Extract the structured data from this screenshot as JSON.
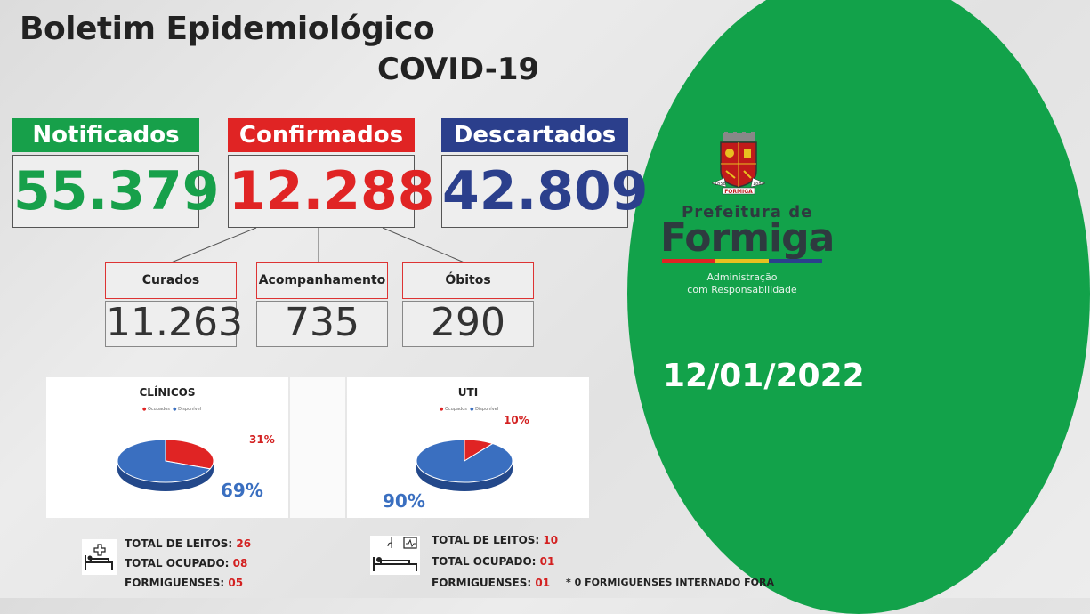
{
  "header": {
    "title": "Boletim Epidemiológico",
    "subtitle": "COVID-19"
  },
  "summary": [
    {
      "label": "Notificados",
      "value": "55.379",
      "label_bg": "#17a04a",
      "value_color": "#17a04a"
    },
    {
      "label": "Confirmados",
      "value": "12.288",
      "label_bg": "#e02424",
      "value_color": "#e02424"
    },
    {
      "label": "Descartados",
      "value": "42.809",
      "label_bg": "#2b3f8c",
      "value_color": "#2b3f8c"
    }
  ],
  "breakdown": [
    {
      "label": "Curados",
      "value": "11.263"
    },
    {
      "label": "Acompanhamento",
      "value": "735"
    },
    {
      "label": "Óbitos",
      "value": "290"
    }
  ],
  "chart_data": [
    {
      "type": "pie",
      "title": "CLÍNICOS",
      "legend": [
        "Ocupados",
        "Disponível"
      ],
      "categories": [
        "Ocupados",
        "Disponível"
      ],
      "values": [
        31,
        69
      ],
      "labels": [
        "31%",
        "69%"
      ],
      "colors": [
        "#e02424",
        "#3a6fc0"
      ]
    },
    {
      "type": "pie",
      "title": "UTI",
      "legend": [
        "Ocupados",
        "Disponível"
      ],
      "categories": [
        "Ocupados",
        "Disponível"
      ],
      "values": [
        10,
        90
      ],
      "labels": [
        "10%",
        "90%"
      ],
      "colors": [
        "#e02424",
        "#3a6fc0"
      ]
    }
  ],
  "clinicos_stats": [
    {
      "label": "TOTAL DE LEITOS:",
      "value": "26"
    },
    {
      "label": "TOTAL OCUPADO:",
      "value": "08"
    },
    {
      "label": "FORMIGUENSES:",
      "value": "05"
    }
  ],
  "uti_stats": [
    {
      "label": "TOTAL DE LEITOS:",
      "value": "10"
    },
    {
      "label": "TOTAL OCUPADO:",
      "value": "01"
    },
    {
      "label": "FORMIGUENSES:",
      "value": "01"
    }
  ],
  "uti_note": "* 0 FORMIGUENSES INTERNADO FORA",
  "branding": {
    "prefix": "Prefeitura de",
    "name": "Formiga",
    "tagline_1": "Administração",
    "tagline_2": "com Responsabilidade",
    "crest_text": "FORMIGA",
    "crest_year_left": "1858",
    "crest_year_right": "1880"
  },
  "date": "12/01/2022",
  "icons": {
    "bed": "hospital-bed-icon",
    "uti": "icu-bed-icon"
  }
}
